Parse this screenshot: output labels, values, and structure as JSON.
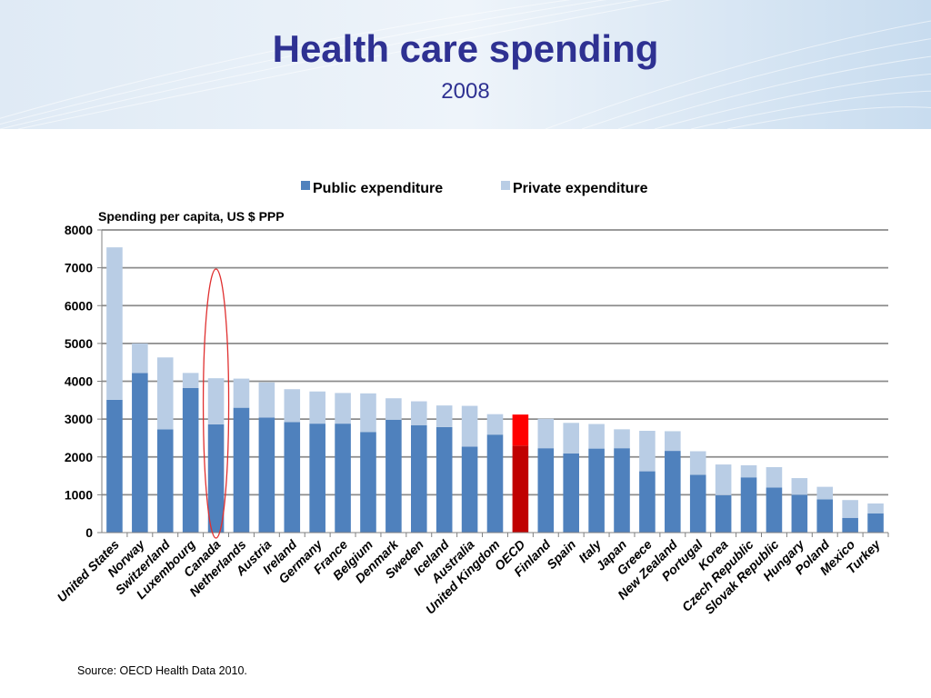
{
  "page": {
    "title": "Health care spending",
    "subtitle": "2008",
    "source": "Source: OECD Health Data 2010."
  },
  "colors": {
    "title": "#2e3192",
    "public": "#4f81bd",
    "private": "#b9cde5",
    "oecd_public": "#c00000",
    "oecd_private": "#ff0000",
    "highlight_ellipse": "#e03030"
  },
  "chart_data": {
    "type": "bar",
    "stacked": true,
    "title": "",
    "ylabel": "Spending per capita, US $ PPP",
    "xlabel": "",
    "ylim": [
      0,
      8000
    ],
    "yticks": [
      0,
      1000,
      2000,
      3000,
      4000,
      5000,
      6000,
      7000,
      8000
    ],
    "grid": true,
    "legend_position": "top",
    "highlighted_category": "OECD",
    "circled_category": "Canada",
    "categories": [
      "United States",
      "Norway",
      "Switzerland",
      "Luxembourg",
      "Canada",
      "Netherlands",
      "Austria",
      "Ireland",
      "Germany",
      "France",
      "Belgium",
      "Denmark",
      "Sweden",
      "Iceland",
      "Australia",
      "United Kingdom",
      "OECD",
      "Finland",
      "Spain",
      "Italy",
      "Japan",
      "Greece",
      "New Zealand",
      "Portugal",
      "Korea",
      "Czech Republic",
      "Slovak Republic",
      "Hungary",
      "Poland",
      "Mexico",
      "Turkey"
    ],
    "series": [
      {
        "name": "Public expenditure",
        "values": [
          3510,
          4220,
          2730,
          3820,
          2860,
          3300,
          3040,
          2920,
          2880,
          2880,
          2660,
          2980,
          2840,
          2790,
          2270,
          2590,
          2300,
          2230,
          2090,
          2220,
          2230,
          1620,
          2160,
          1530,
          990,
          1460,
          1190,
          1000,
          880,
          390,
          510
        ]
      },
      {
        "name": "Private expenditure",
        "values": [
          4030,
          780,
          1900,
          400,
          1220,
          770,
          930,
          870,
          850,
          810,
          1020,
          570,
          630,
          570,
          1080,
          540,
          820,
          780,
          810,
          650,
          500,
          1070,
          520,
          620,
          810,
          320,
          540,
          440,
          330,
          470,
          260
        ]
      }
    ]
  }
}
